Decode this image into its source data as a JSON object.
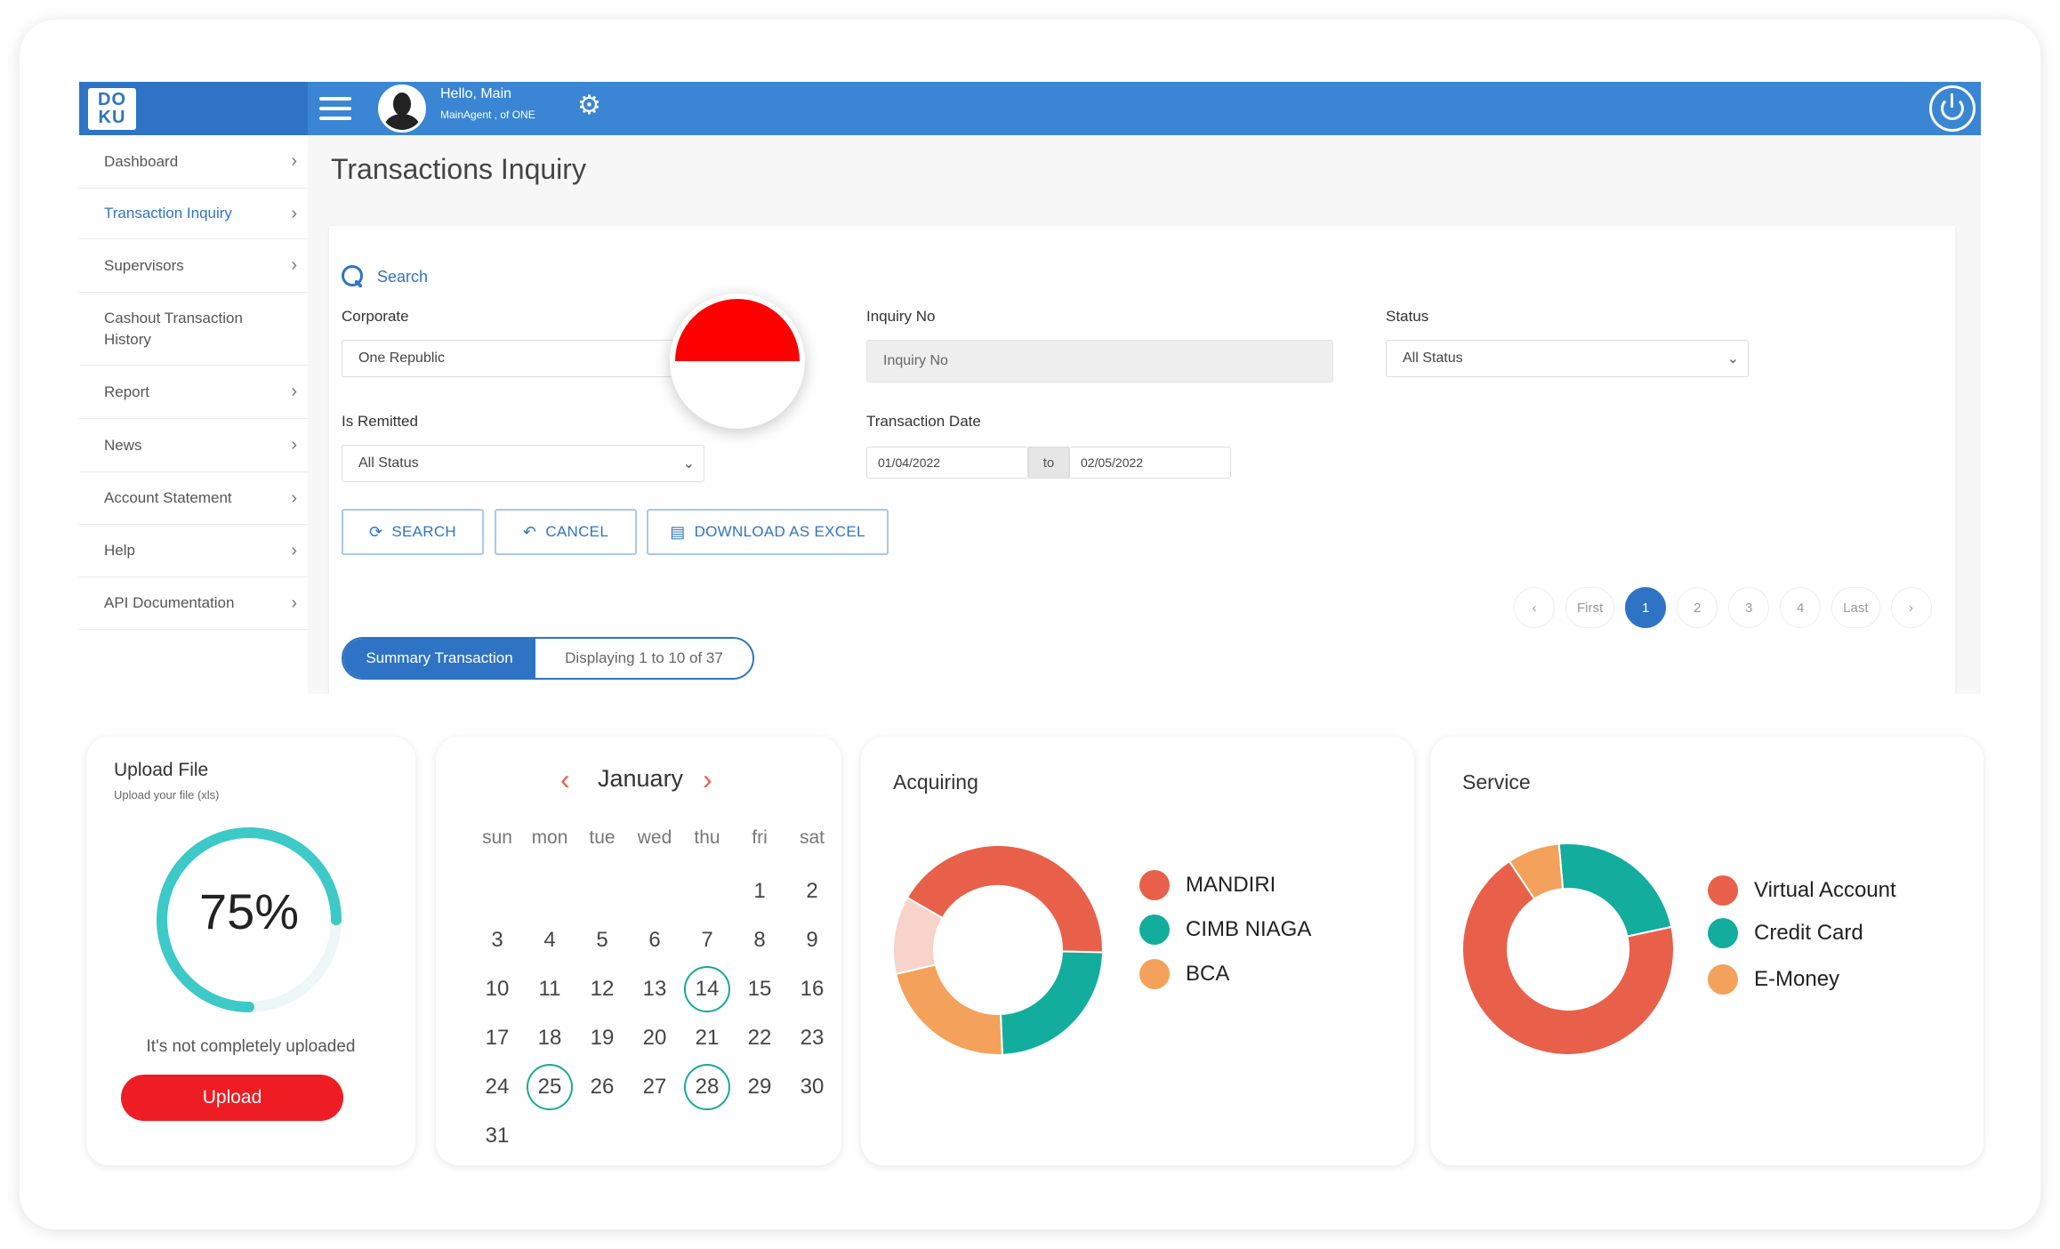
{
  "header": {
    "logo_text": "DOKU",
    "greeting": "Hello, Main",
    "sub": "MainAgent , of ONE"
  },
  "sidebar": {
    "items": [
      {
        "label": "Dashboard"
      },
      {
        "label": "Transaction Inquiry"
      },
      {
        "label": "Supervisors"
      },
      {
        "label": "Cashout Transaction History"
      },
      {
        "label": "Report"
      },
      {
        "label": "News"
      },
      {
        "label": "Account Statement"
      },
      {
        "label": "Help"
      },
      {
        "label": "API Documentation"
      }
    ]
  },
  "page": {
    "title": "Transactions Inquiry",
    "search_label": "Search"
  },
  "form": {
    "corporate_label": "Corporate",
    "corporate_value": "One Republic",
    "inquiry_label": "Inquiry No",
    "inquiry_placeholder": "Inquiry No",
    "status_label": "Status",
    "status_value": "All Status",
    "remitted_label": "Is Remitted",
    "remitted_value": "All Status",
    "date_label": "Transaction Date",
    "date_from": "01/04/2022",
    "date_to_label": "to",
    "date_to": "02/05/2022"
  },
  "buttons": {
    "search": "SEARCH",
    "cancel": "CANCEL",
    "download": "DOWNLOAD AS EXCEL"
  },
  "pagination": {
    "first": "First",
    "last": "Last",
    "pages": [
      "1",
      "2",
      "3",
      "4"
    ],
    "prev": "‹",
    "next": "›"
  },
  "summary": {
    "tab": "Summary Transaction",
    "display": "Displaying 1 to 10 of 37"
  },
  "upload": {
    "title": "Upload File",
    "subtitle": "Upload your file (xls)",
    "percent_text": "75%",
    "progress": 0.75,
    "status": "It's not completely uploaded",
    "button": "Upload"
  },
  "calendar": {
    "month": "January",
    "weekdays": [
      "sun",
      "mon",
      "tue",
      "wed",
      "thu",
      "fri",
      "sat"
    ],
    "days": [
      "1",
      "2",
      "3",
      "4",
      "5",
      "6",
      "7",
      "8",
      "9",
      "10",
      "11",
      "12",
      "13",
      "14",
      "15",
      "16",
      "17",
      "18",
      "19",
      "20",
      "21",
      "22",
      "23",
      "24",
      "25",
      "26",
      "27",
      "28",
      "29",
      "30",
      "31"
    ],
    "first_weekday": 5,
    "circled": [
      "14",
      "25",
      "28"
    ]
  },
  "acquiring": {
    "title": "Acquiring",
    "legend": [
      {
        "label": "MANDIRI",
        "color": "#e9604a"
      },
      {
        "label": "CIMB NIAGA",
        "color": "#12ad9d"
      },
      {
        "label": "BCA",
        "color": "#f4a25b"
      }
    ],
    "segments": [
      {
        "value": 0.42,
        "color": "#e9604a"
      },
      {
        "value": 0.24,
        "color": "#12ad9d"
      },
      {
        "value": 0.22,
        "color": "#f4a25b"
      },
      {
        "value": 0.12,
        "color": "#f7d3c9"
      }
    ]
  },
  "service": {
    "title": "Service",
    "legend": [
      {
        "label": "Virtual Account",
        "color": "#e9604a"
      },
      {
        "label": "Credit Card",
        "color": "#12ad9d"
      },
      {
        "label": "E-Money",
        "color": "#f4a25b"
      }
    ],
    "segments": [
      {
        "value": 0.23,
        "color": "#12ad9d"
      },
      {
        "value": 0.69,
        "color": "#e9604a"
      },
      {
        "value": 0.08,
        "color": "#f4a25b"
      }
    ]
  }
}
